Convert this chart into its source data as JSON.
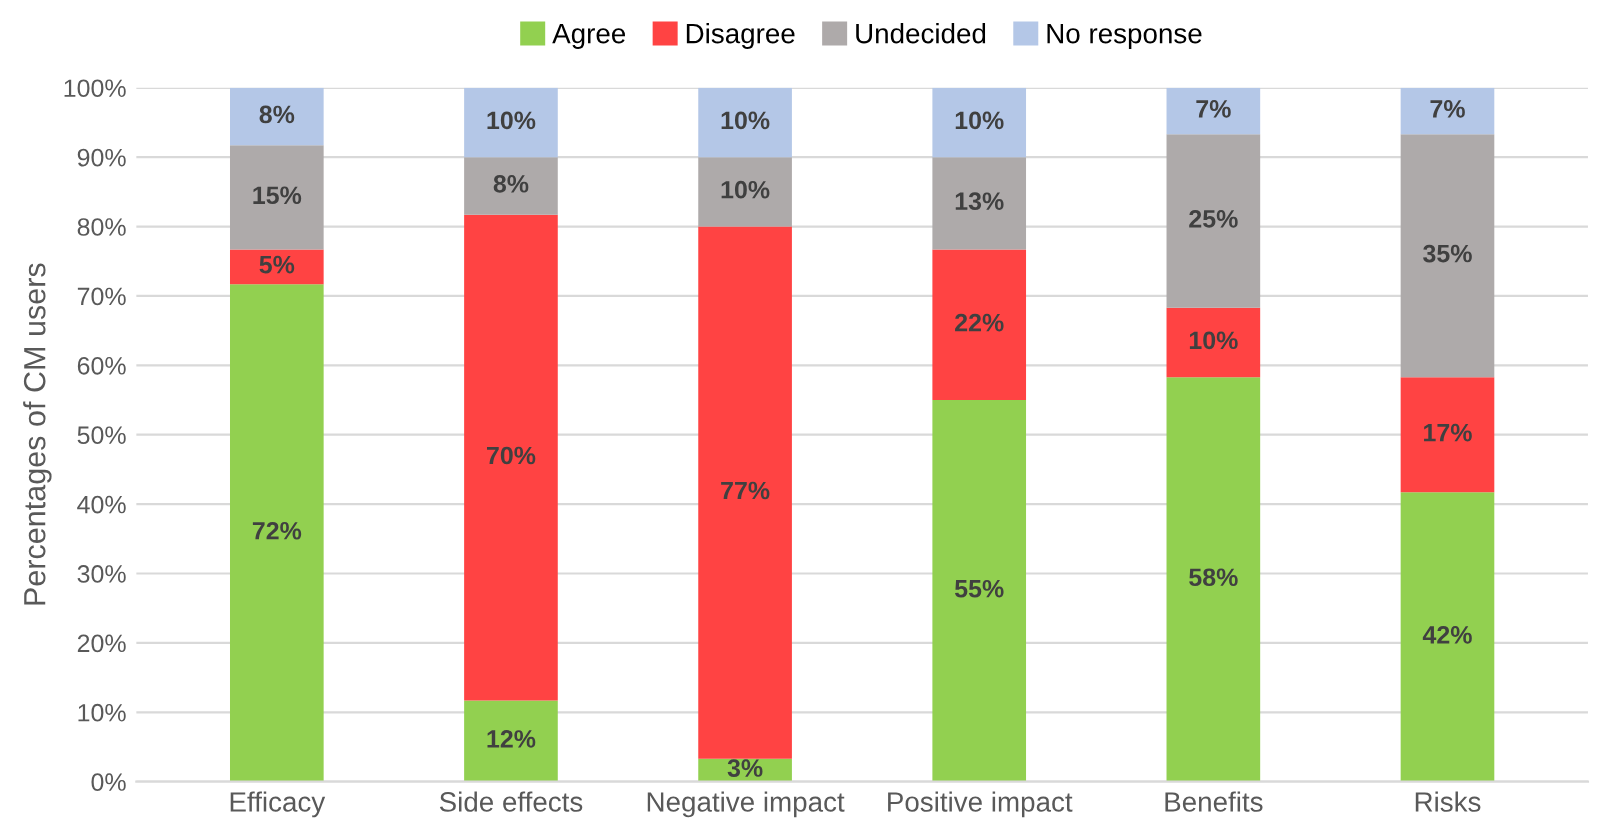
{
  "chart_data": {
    "type": "bar",
    "stacked": true,
    "ylabel": "Percentages of CM users",
    "categories": [
      "Efficacy",
      "Side effects",
      "Negative impact",
      "Positive impact",
      "Benefits",
      "Risks"
    ],
    "series": [
      {
        "name": "Agree",
        "color": "#92d050",
        "values": [
          71.7,
          11.7,
          3.3,
          55,
          58.3,
          41.7
        ],
        "value_labels": [
          "72%",
          "12%",
          "3%",
          "55%",
          "58%",
          "42%"
        ]
      },
      {
        "name": "Disagree",
        "color": "#ff4343",
        "values": [
          5,
          70,
          76.7,
          21.7,
          10,
          16.6
        ],
        "value_labels": [
          "5%",
          "70%",
          "77%",
          "22%",
          "10%",
          "17%"
        ]
      },
      {
        "name": "Undecided",
        "color": "#aeaaaa",
        "values": [
          15,
          8.3,
          10,
          13.3,
          25,
          35
        ],
        "value_labels": [
          "15%",
          "8%",
          "10%",
          "13%",
          "25%",
          "35%"
        ]
      },
      {
        "name": "No response",
        "color": "#b4c7e7",
        "values": [
          8.3,
          10,
          10,
          10,
          6.7,
          6.7
        ],
        "value_labels": [
          "8%",
          "10%",
          "10%",
          "10%",
          "7%",
          "7%"
        ]
      }
    ],
    "ylim": [
      0,
      100
    ],
    "yticks": [
      {
        "value": 0,
        "label": "0%"
      },
      {
        "value": 10,
        "label": "10%"
      },
      {
        "value": 20,
        "label": "20%"
      },
      {
        "value": 30,
        "label": "30%"
      },
      {
        "value": 40,
        "label": "40%"
      },
      {
        "value": 50,
        "label": "50%"
      },
      {
        "value": 60,
        "label": "60%"
      },
      {
        "value": 70,
        "label": "70%"
      },
      {
        "value": 80,
        "label": "80%"
      },
      {
        "value": 90,
        "label": "90%"
      },
      {
        "value": 100,
        "label": "100%"
      }
    ],
    "grid": "y",
    "legend": "top"
  }
}
